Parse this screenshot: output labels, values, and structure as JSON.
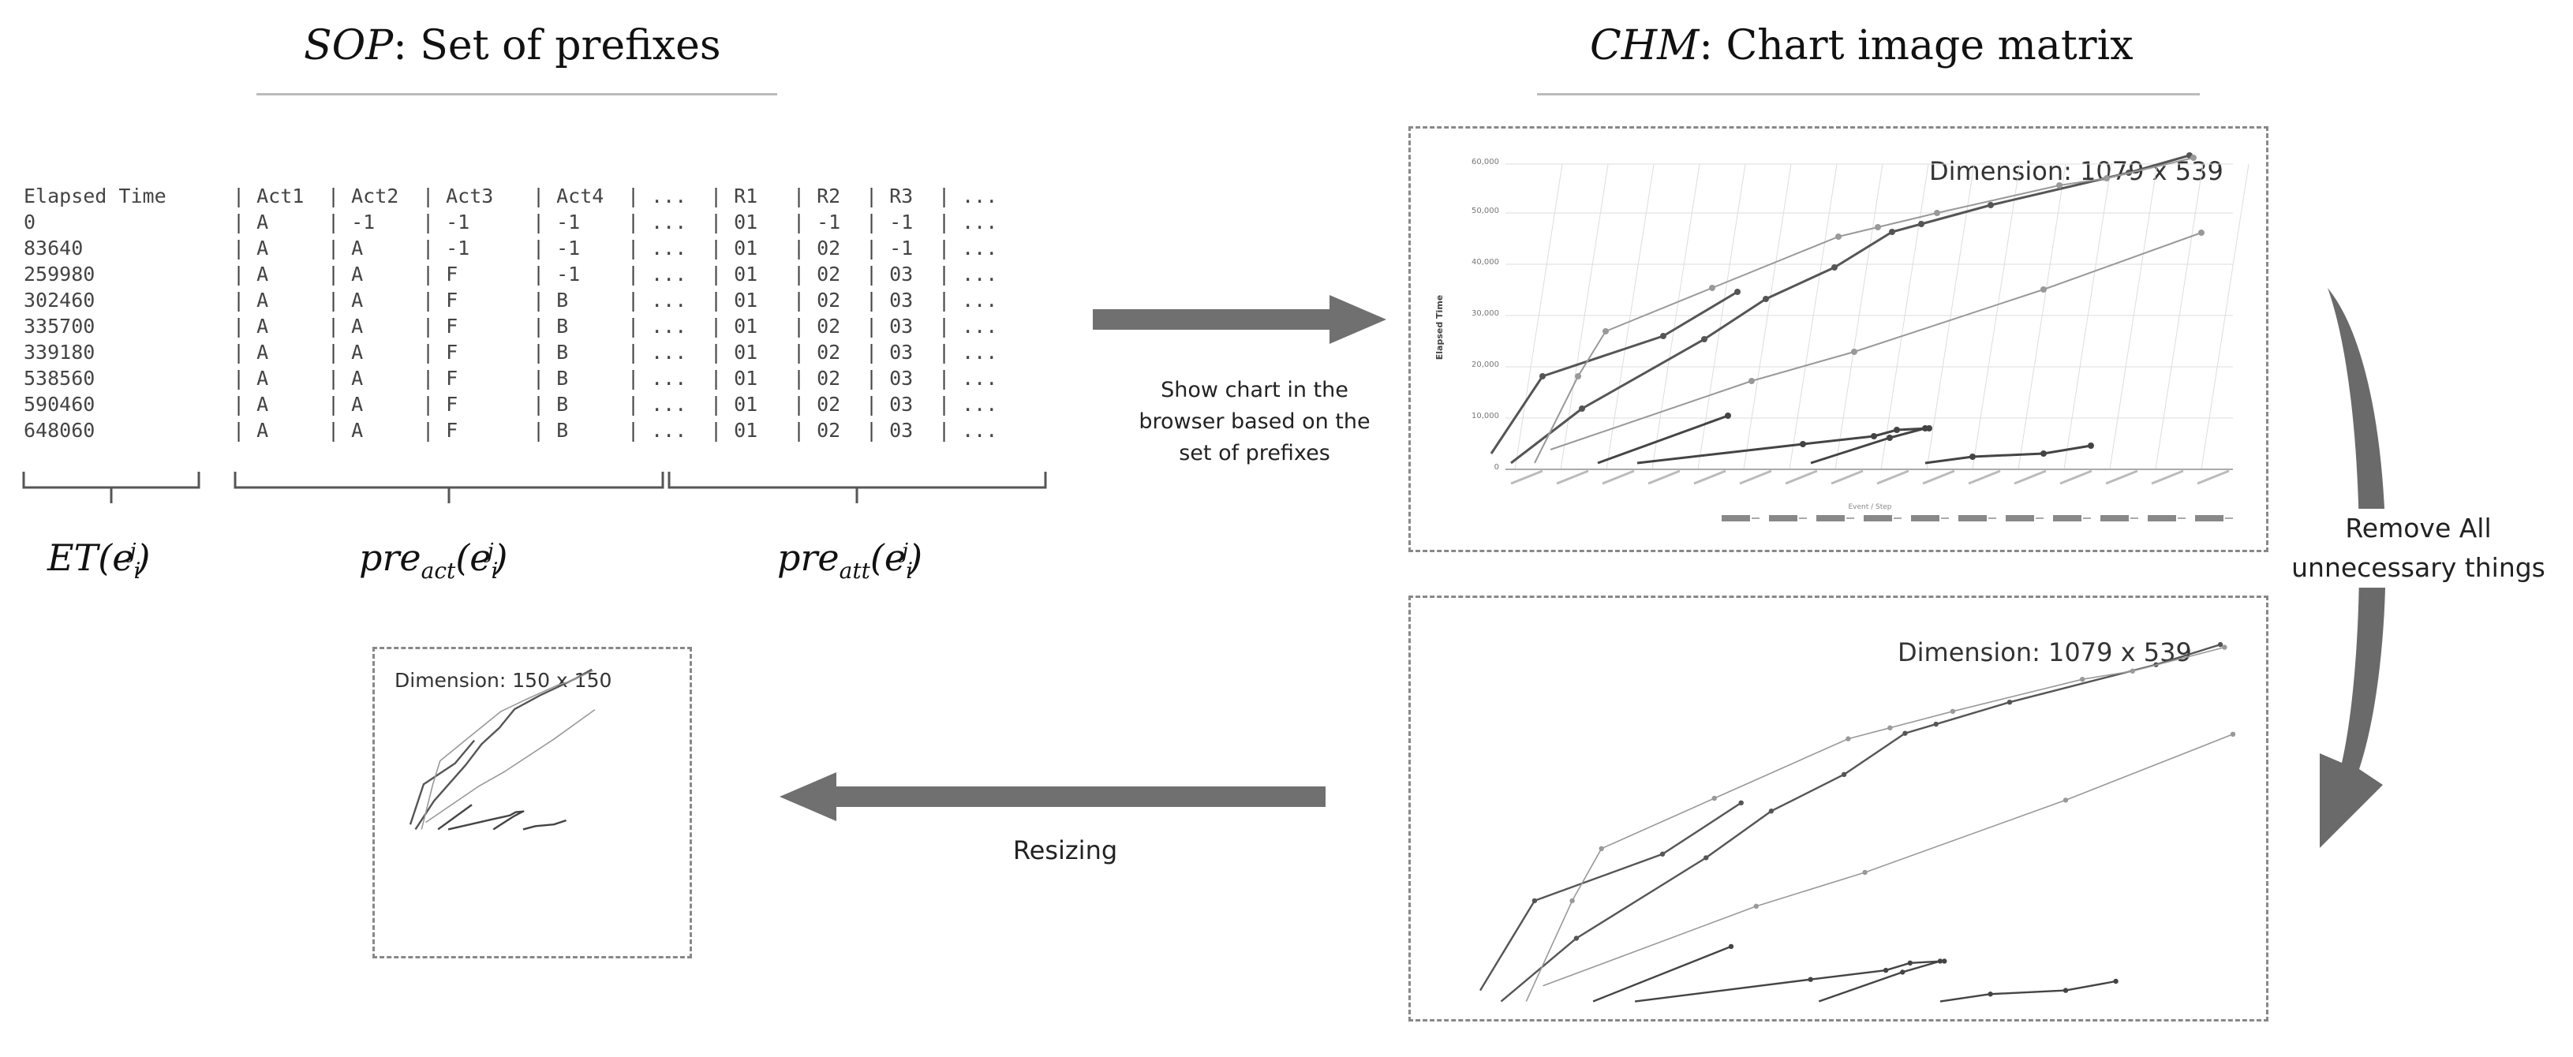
{
  "sop": {
    "title_symbol": "SOP",
    "title_text": ": Set of prefixes",
    "table": [
      [
        "Elapsed Time",
        "| Act1",
        "| Act2",
        "| Act3",
        "| Act4",
        "| ...",
        "| R1",
        "| R2",
        "| R3",
        "| ..."
      ],
      [
        "0",
        "| A",
        "| -1",
        "| -1",
        "| -1",
        "| ...",
        "| 01",
        "| -1",
        "| -1",
        "| ..."
      ],
      [
        "83640",
        "| A",
        "| A",
        "| -1",
        "| -1",
        "| ...",
        "| 01",
        "| 02",
        "| -1",
        "| ..."
      ],
      [
        "259980",
        "| A",
        "| A",
        "| F",
        "| -1",
        "| ...",
        "| 01",
        "| 02",
        "| 03",
        "| ..."
      ],
      [
        "302460",
        "| A",
        "| A",
        "| F",
        "| B",
        "| ...",
        "| 01",
        "| 02",
        "| 03",
        "| ..."
      ],
      [
        "335700",
        "| A",
        "| A",
        "| F",
        "| B",
        "| ...",
        "| 01",
        "| 02",
        "| 03",
        "| ..."
      ],
      [
        "339180",
        "| A",
        "| A",
        "| F",
        "| B",
        "| ...",
        "| 01",
        "| 02",
        "| 03",
        "| ..."
      ],
      [
        "538560",
        "| A",
        "| A",
        "| F",
        "| B",
        "| ...",
        "| 01",
        "| 02",
        "| 03",
        "| ..."
      ],
      [
        "590460",
        "| A",
        "| A",
        "| F",
        "| B",
        "| ...",
        "| 01",
        "| 02",
        "| 03",
        "| ..."
      ],
      [
        "648060",
        "| A",
        "| A",
        "| F",
        "| B",
        "| ...",
        "| 01",
        "| 02",
        "| 03",
        "| ..."
      ]
    ],
    "brace_labels": {
      "et": "ET",
      "pre": "pre",
      "act_sub": "act",
      "att_sub": "att",
      "arg_e": "e",
      "sub_i": "i",
      "sup_j": "j"
    }
  },
  "chm": {
    "title_symbol": "CHM",
    "title_text": ": Chart image matrix",
    "top_dimension": "Dimension: 1079 x 539",
    "bottom_dimension": "Dimension: 1079 x 539",
    "ylabel": "Elapsed Time",
    "xlabel": "Event / Step",
    "yticks": [
      "60,000",
      "50,000",
      "40,000",
      "30,000",
      "20,000",
      "10,000",
      "0"
    ]
  },
  "arrows": {
    "show_chart_label": "Show chart in the browser based on the set of prefixes",
    "remove_label_line1": "Remove All",
    "remove_label_line2": "unnecessary things",
    "resizing_label": "Resizing"
  },
  "small": {
    "dimension": "Dimension: 150 x 150"
  }
}
